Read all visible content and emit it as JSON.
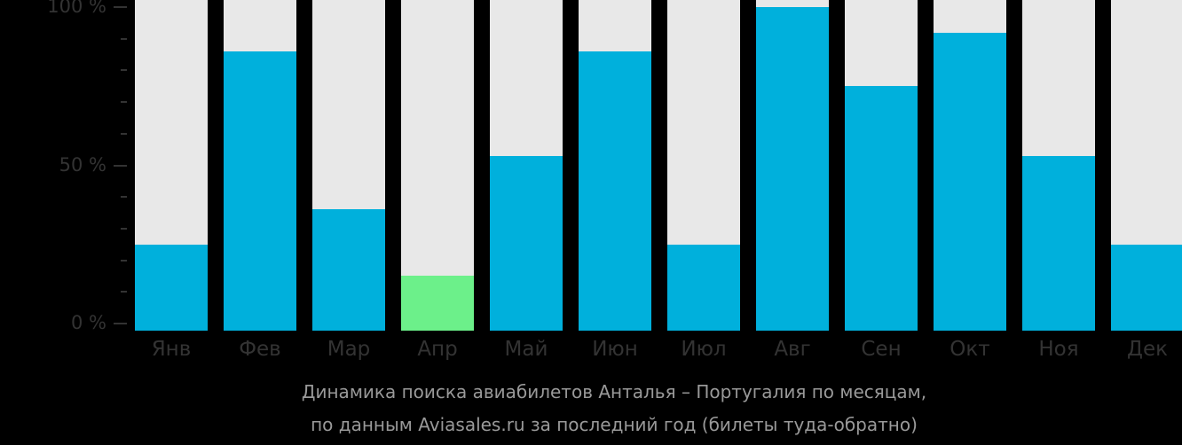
{
  "chart_data": {
    "type": "bar",
    "title": "Динамика поиска авиабилетов Анталья – Португалия по месяцам, по данным Aviasales.ru за последний год (билеты туда-обратно)",
    "xlabel": "",
    "ylabel": "",
    "ylim": [
      0,
      100
    ],
    "y_ticks": [
      "0 %",
      "50 %",
      "100 %"
    ],
    "grid": false,
    "categories": [
      "Янв",
      "Фев",
      "Мар",
      "Апр",
      "Май",
      "Июн",
      "Июл",
      "Авг",
      "Сен",
      "Окт",
      "Ноя",
      "Дек"
    ],
    "values": [
      25,
      86,
      36,
      15,
      53,
      86,
      25,
      100,
      75,
      92,
      53,
      25
    ],
    "highlight_index": 3,
    "colors": {
      "bar": "#00b0dc",
      "highlight": "#6cf08a",
      "track": "#e8e8e8",
      "axis_text": "#333333",
      "caption": "#999999"
    }
  },
  "caption": {
    "line1": "Динамика поиска авиабилетов Анталья – Португалия по месяцам,",
    "line2": "по данным Aviasales.ru за последний год (билеты туда-обратно)"
  }
}
